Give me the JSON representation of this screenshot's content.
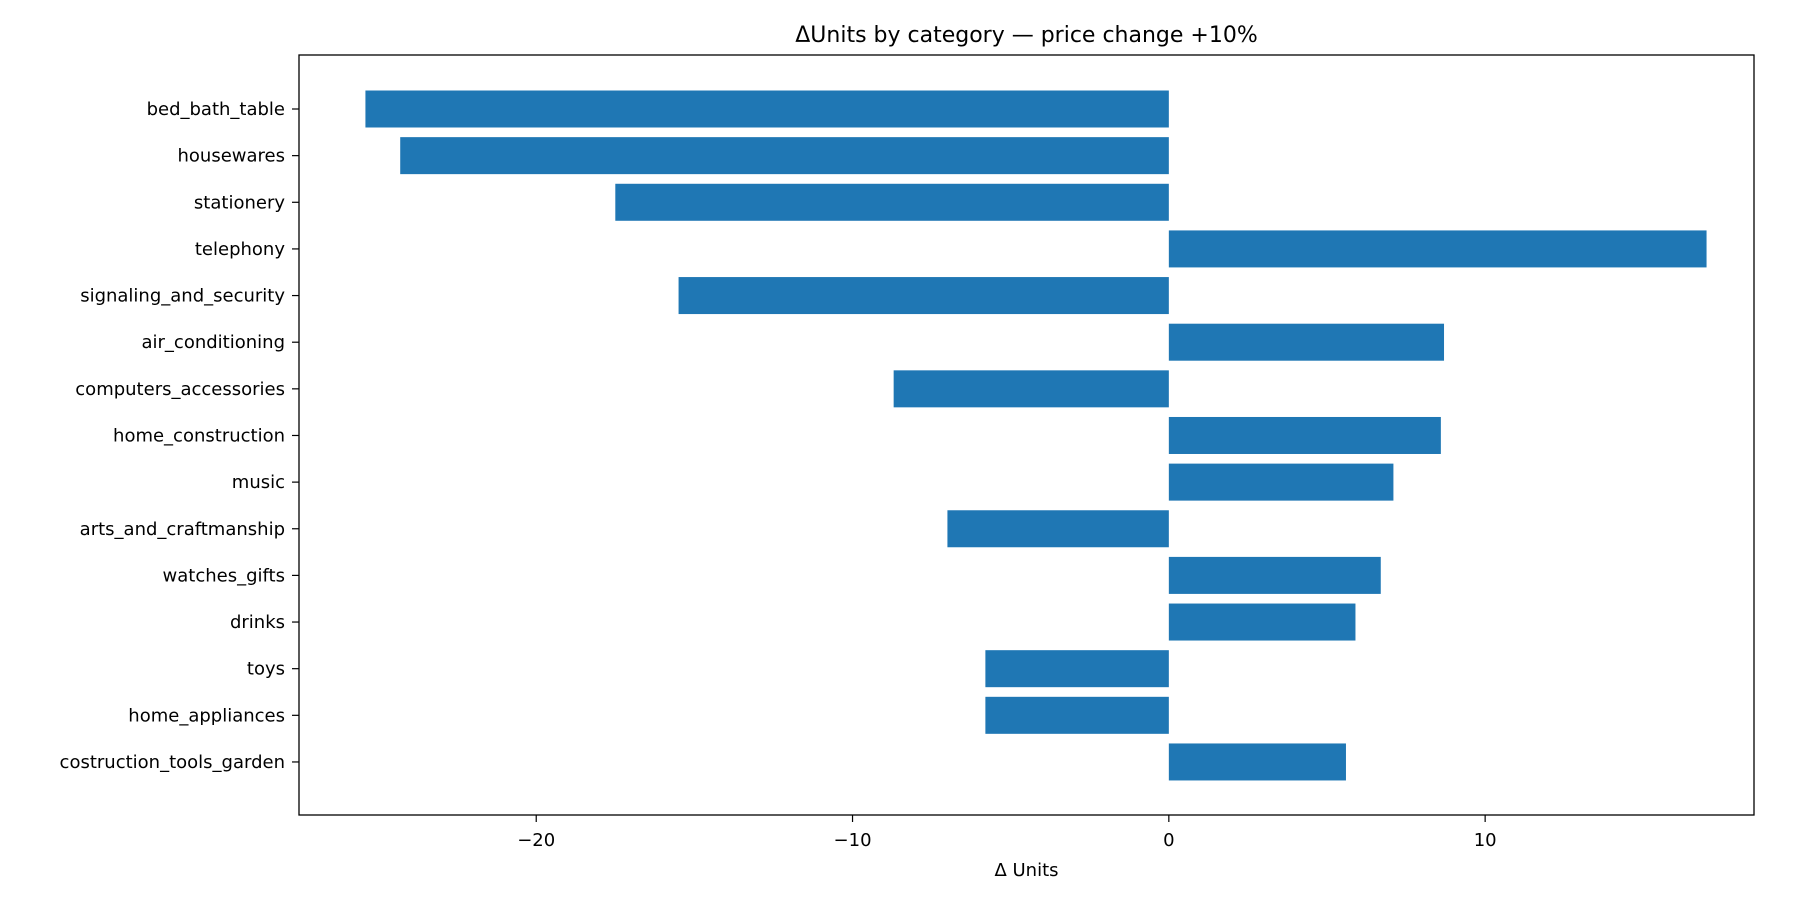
{
  "colors": {
    "bar": "#1f77b4",
    "axis": "#000000",
    "background": "#ffffff"
  },
  "chart_data": {
    "type": "bar",
    "orientation": "horizontal",
    "title": "ΔUnits by category — price change +10%",
    "xlabel": "Δ Units",
    "ylabel": "",
    "xlim": [
      -27.5,
      18.5
    ],
    "xticks": [
      -20,
      -10,
      0,
      10
    ],
    "xtick_labels": [
      "−20",
      "−10",
      "0",
      "10"
    ],
    "grid": false,
    "categories": [
      "bed_bath_table",
      "housewares",
      "stationery",
      "telephony",
      "signaling_and_security",
      "air_conditioning",
      "computers_accessories",
      "home_construction",
      "music",
      "arts_and_craftmanship",
      "watches_gifts",
      "drinks",
      "toys",
      "home_appliances",
      "costruction_tools_garden"
    ],
    "values": [
      -25.4,
      -24.3,
      -17.5,
      17.0,
      -15.5,
      8.7,
      -8.7,
      8.6,
      7.1,
      -7.0,
      6.7,
      5.9,
      -5.8,
      -5.8,
      5.6
    ]
  }
}
